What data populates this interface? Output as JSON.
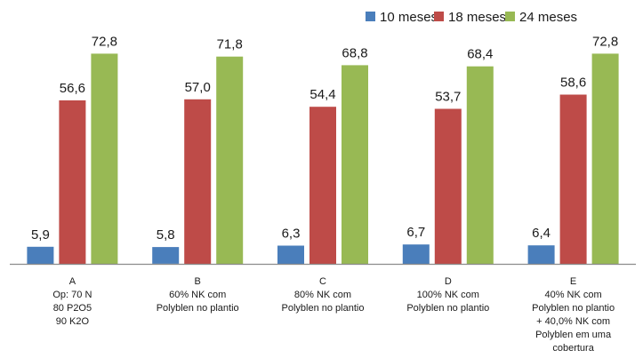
{
  "chart_data": {
    "type": "bar",
    "categories": [
      [
        "A",
        "Op: 70 N",
        "80 P2O5",
        "90 K2O"
      ],
      [
        "B",
        "60% NK com",
        "Polyblen no plantio"
      ],
      [
        "C",
        "80% NK com",
        "Polyblen no plantio"
      ],
      [
        "D",
        "100% NK com",
        "Polyblen no plantio"
      ],
      [
        "E",
        "40% NK com",
        "Polyblen no plantio",
        "+ 40,0% NK com",
        "Polyblen em uma",
        "cobertura"
      ]
    ],
    "series": [
      {
        "name": "10 meses",
        "color": "#4a7ebb",
        "values": [
          5.9,
          5.8,
          6.3,
          6.7,
          6.4
        ],
        "labels": [
          "5,9",
          "5,8",
          "6,3",
          "6,7",
          "6,4"
        ]
      },
      {
        "name": "18 meses",
        "color": "#be4b48",
        "values": [
          56.6,
          57.0,
          54.4,
          53.7,
          58.6
        ],
        "labels": [
          "56,6",
          "57,0",
          "54,4",
          "53,7",
          "58,6"
        ]
      },
      {
        "name": "24 meses",
        "color": "#98b954",
        "values": [
          72.8,
          71.8,
          68.8,
          68.4,
          72.8
        ],
        "labels": [
          "72,8",
          "71,8",
          "68,8",
          "68,4",
          "72,8"
        ]
      }
    ],
    "title": "",
    "xlabel": "",
    "ylabel": "",
    "ylim": [
      0,
      80
    ],
    "grid": false,
    "legend_position": "top-right"
  }
}
